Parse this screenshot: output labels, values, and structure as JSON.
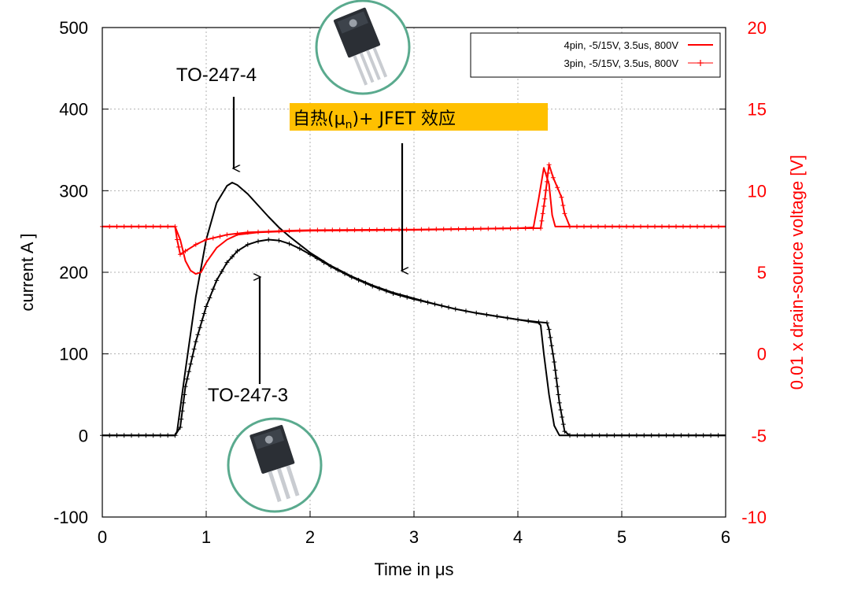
{
  "chart_data": {
    "type": "line",
    "xlabel": "Time in μs",
    "ylabel": "current A ]",
    "y2label": "0.01 x drain-source voltage [V]",
    "xlim": [
      0,
      6
    ],
    "ylim": [
      -100,
      500
    ],
    "y2lim": [
      -10,
      20
    ],
    "xticks": [
      "0",
      "1",
      "2",
      "3",
      "4",
      "5",
      "6"
    ],
    "yticks": [
      "-100",
      "0",
      "100",
      "200",
      "300",
      "400",
      "500"
    ],
    "y2ticks": [
      "-10",
      "-5",
      "0",
      "5",
      "10",
      "15",
      "20"
    ],
    "grid": true,
    "legend_position": "top-right",
    "legend": [
      {
        "label": "4pin, -5/15V, 3.5us, 800V",
        "color": "#ff0000",
        "marker": "line"
      },
      {
        "label": "3pin, -5/15V, 3.5us, 800V",
        "color": "#ff0000",
        "marker": "plus"
      }
    ],
    "series": [
      {
        "axis": "left",
        "color": "#000000",
        "style": "line",
        "x": [
          0,
          0.7,
          0.72,
          0.8,
          0.9,
          1.0,
          1.1,
          1.2,
          1.25,
          1.3,
          1.4,
          1.5,
          1.6,
          1.7,
          1.8,
          1.9,
          2.0,
          2.2,
          2.4,
          2.6,
          2.8,
          3.0,
          3.2,
          3.4,
          3.6,
          3.8,
          4.0,
          4.15,
          4.2,
          4.22,
          4.25,
          4.3,
          4.35,
          4.4,
          5.0,
          6.0
        ],
        "y": [
          0,
          0,
          5,
          80,
          170,
          240,
          285,
          306,
          310,
          307,
          296,
          282,
          268,
          255,
          244,
          234,
          224,
          208,
          195,
          184,
          175,
          168,
          161,
          155,
          150,
          146,
          142,
          139,
          138,
          135,
          100,
          50,
          12,
          0,
          0,
          0
        ]
      },
      {
        "axis": "left",
        "color": "#000000",
        "style": "plus",
        "x": [
          0,
          0.7,
          0.75,
          0.8,
          0.9,
          1.0,
          1.1,
          1.2,
          1.3,
          1.4,
          1.5,
          1.6,
          1.7,
          1.8,
          1.9,
          2.0,
          2.2,
          2.4,
          2.6,
          2.8,
          3.0,
          3.2,
          3.4,
          3.6,
          3.8,
          4.0,
          4.2,
          4.28,
          4.3,
          4.35,
          4.4,
          4.45,
          4.5,
          5.0,
          6.0
        ],
        "y": [
          0,
          0,
          10,
          60,
          115,
          158,
          190,
          212,
          226,
          234,
          238,
          240,
          239,
          235,
          229,
          222,
          207,
          194,
          183,
          174,
          167,
          161,
          155,
          150,
          146,
          142,
          139,
          138,
          130,
          90,
          40,
          5,
          0,
          0,
          0
        ]
      },
      {
        "axis": "right",
        "color": "#ff0000",
        "style": "line",
        "x": [
          0,
          0.7,
          0.75,
          0.8,
          0.85,
          0.9,
          0.95,
          1.0,
          1.1,
          1.2,
          1.3,
          1.5,
          1.7,
          2.0,
          3.0,
          4.0,
          4.15,
          4.2,
          4.25,
          4.3,
          4.33,
          4.36,
          6.0
        ],
        "y": [
          7.8,
          7.8,
          7.0,
          5.7,
          5.1,
          4.9,
          5.0,
          5.6,
          6.5,
          7.0,
          7.3,
          7.45,
          7.5,
          7.55,
          7.6,
          7.7,
          7.75,
          9.5,
          11.4,
          10.4,
          8.5,
          7.8,
          7.8
        ]
      },
      {
        "axis": "right",
        "color": "#ff0000",
        "style": "plus",
        "x": [
          0,
          0.7,
          0.72,
          0.75,
          0.8,
          0.9,
          1.0,
          1.2,
          1.4,
          1.6,
          1.8,
          2.0,
          3.0,
          4.0,
          4.22,
          4.26,
          4.3,
          4.34,
          4.38,
          4.42,
          4.45,
          4.5,
          6.0
        ],
        "y": [
          7.8,
          7.8,
          7.0,
          6.1,
          6.3,
          6.7,
          7.0,
          7.3,
          7.45,
          7.5,
          7.55,
          7.58,
          7.62,
          7.7,
          7.7,
          9.5,
          11.6,
          10.8,
          10.2,
          9.6,
          8.6,
          7.8,
          7.8
        ]
      }
    ],
    "annotations": {
      "top_package": "TO-247-4",
      "bottom_package": "TO-247-3",
      "callout_prefix": "自热(μ",
      "callout_sub": "n",
      "callout_suffix": ")+ JFET 效应"
    }
  }
}
